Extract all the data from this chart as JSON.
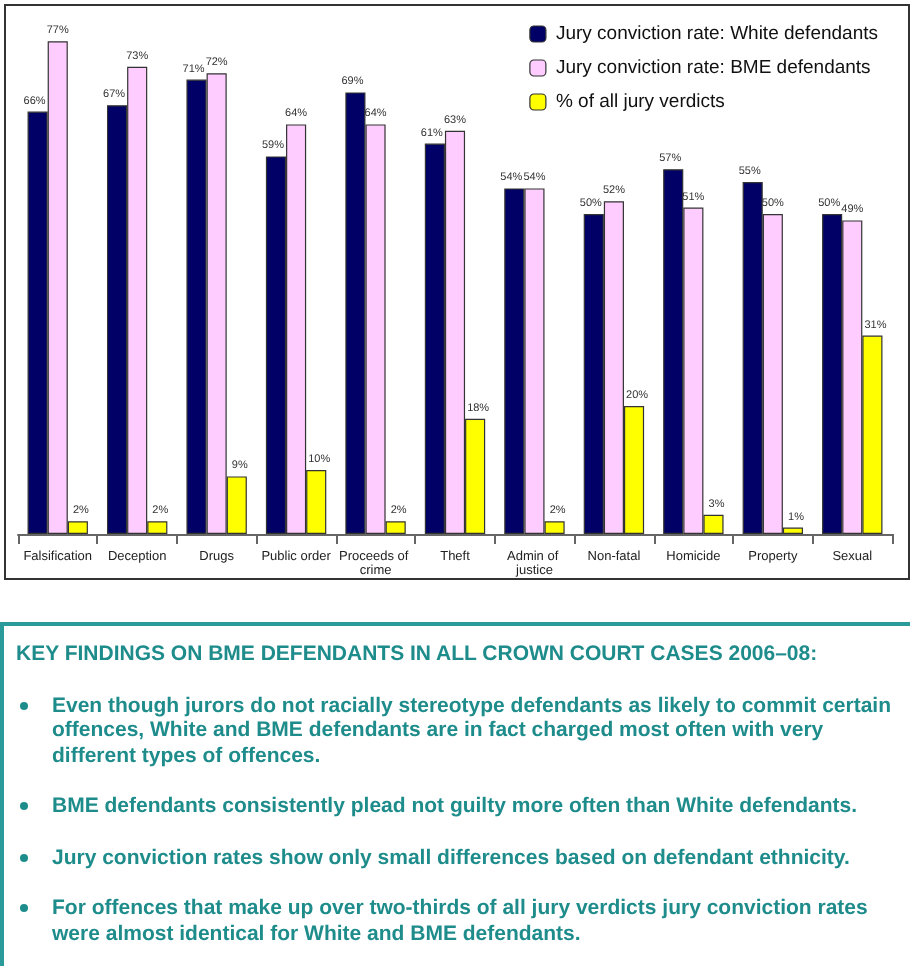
{
  "chart_data": {
    "type": "bar",
    "categories": [
      "Falsification",
      "Deception",
      "Drugs",
      "Public order",
      "Proceeds of crime",
      "Theft",
      "Admin of justice",
      "Non-fatal",
      "Homicide",
      "Property",
      "Sexual"
    ],
    "series": [
      {
        "name": "Jury conviction rate: White defendants",
        "color": "#000066",
        "values": [
          66,
          67,
          71,
          59,
          69,
          61,
          54,
          50,
          57,
          55,
          50
        ],
        "value_labels": [
          "66%",
          "67%",
          "71%",
          "59%",
          "69%",
          "61%",
          "54%",
          "50%",
          "57%",
          "55%",
          "50%"
        ]
      },
      {
        "name": "Jury conviction rate: BME defendants",
        "color": "#ffccff",
        "values": [
          77,
          73,
          72,
          64,
          64,
          63,
          54,
          52,
          51,
          50,
          49
        ],
        "value_labels": [
          "77%",
          "73%",
          "72%",
          "64%",
          "64%",
          "63%",
          "54%",
          "52%",
          "51%",
          "50%",
          "49%"
        ]
      },
      {
        "name": "% of all jury verdicts",
        "color": "#ffff00",
        "values": [
          2,
          2,
          9,
          10,
          2,
          18,
          2,
          20,
          3,
          1,
          31
        ],
        "value_labels": [
          "2%",
          "2%",
          "9%",
          "10%",
          "2%",
          "18%",
          "2%",
          "20%",
          "3%",
          "1%",
          "31%"
        ]
      }
    ],
    "legend": "top right",
    "annotations": [
      "KEY FINDINGS ON BME DEFENDANTS IN ALL CROWN COURT CASES 2006–08:",
      "Even though jurors do not racially stereotype defendants as likely to commit certain offences, White and BME defendants are in fact charged most often with very different types of offences.",
      "BME defendants consistently plead not guilty more often than White defendants.",
      "Jury conviction rates show only small differences based on defendant ethnicity.",
      "For offences that make up over two-thirds of all jury verdicts jury conviction rates were almost identical for White and BME defendants."
    ]
  }
}
